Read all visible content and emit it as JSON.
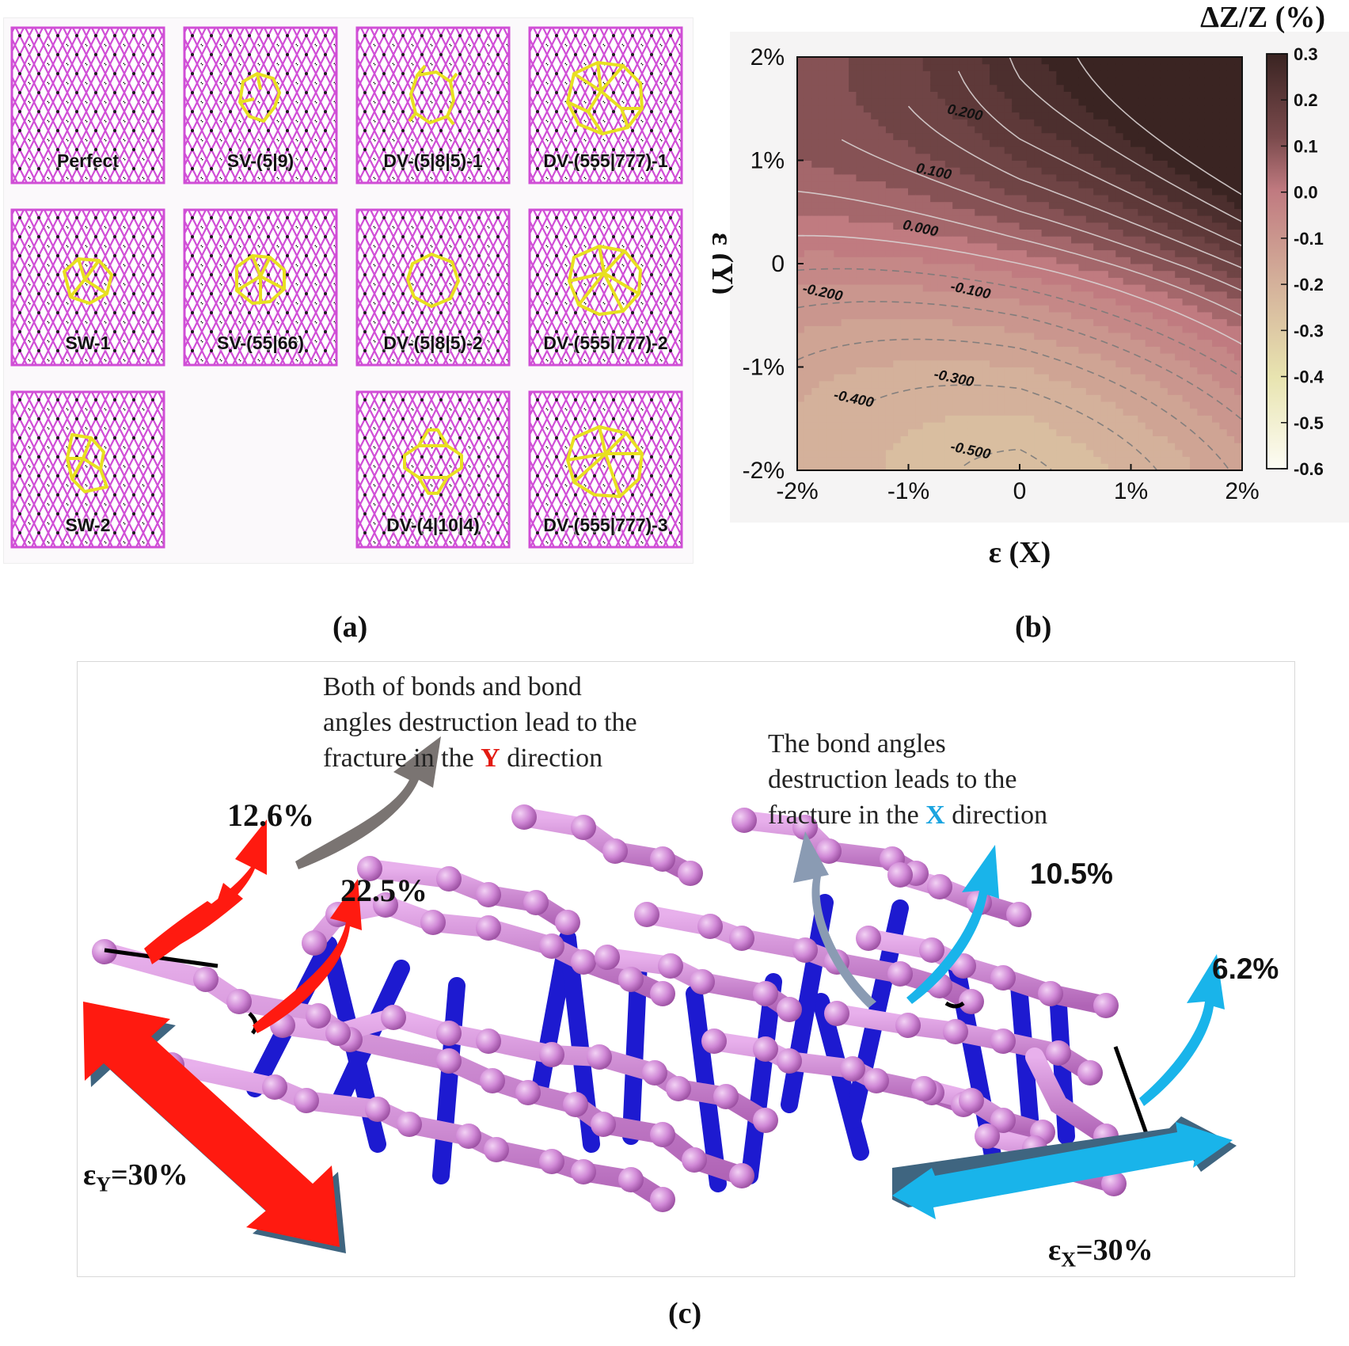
{
  "panel_a": {
    "label": "(a)",
    "tiles": [
      {
        "label": "Perfect"
      },
      {
        "label": "SV-(5|9)"
      },
      {
        "label": "DV-(5|8|5)-1"
      },
      {
        "label": "DV-(555|777)-1"
      },
      {
        "label": "SW-1"
      },
      {
        "label": "SV-(55|66)"
      },
      {
        "label": "DV-(5|8|5)-2"
      },
      {
        "label": "DV-(555|777)-2"
      },
      {
        "label": "SW-2"
      },
      {
        "label": "DV-(4|10|4)"
      },
      {
        "label": "DV-(555|777)-3"
      }
    ],
    "colors": {
      "lattice": "#d04ed6",
      "defect": "#e8e020",
      "atom": "#1a1a1a"
    }
  },
  "panel_b": {
    "label": "(b)",
    "chart_data": {
      "type": "heatmap",
      "title": "ΔZ/Z (%)",
      "xlabel": "ε (X)",
      "ylabel": "ε (Y)",
      "x_ticks": [
        "-2%",
        "-1%",
        "0",
        "1%",
        "2%"
      ],
      "y_ticks": [
        "2%",
        "1%",
        "0",
        "-1%",
        "-2%"
      ],
      "xlim": [
        -2,
        2
      ],
      "ylim": [
        -2,
        2
      ],
      "colorbar": {
        "range": [
          -0.6,
          0.3
        ],
        "ticks": [
          "0.3",
          "0.2",
          "0.1",
          "0.0",
          "-0.1",
          "-0.2",
          "-0.3",
          "-0.4",
          "-0.5",
          "-0.6"
        ]
      },
      "contour_labels": [
        {
          "text": "0.200",
          "value": 0.2,
          "x": -0.5,
          "y": 1.42
        },
        {
          "text": "0.100",
          "value": 0.1,
          "x": -0.78,
          "y": 0.85
        },
        {
          "text": "0.000",
          "value": 0.0,
          "x": -0.9,
          "y": 0.3
        },
        {
          "text": "-0.100",
          "value": -0.1,
          "x": -0.45,
          "y": -0.3
        },
        {
          "text": "-0.200",
          "value": -0.2,
          "x": -1.78,
          "y": -0.32
        },
        {
          "text": "-0.300",
          "value": -0.3,
          "x": -0.6,
          "y": -1.15
        },
        {
          "text": "-0.400",
          "value": -0.4,
          "x": -1.5,
          "y": -1.35
        },
        {
          "text": "-0.500",
          "value": -0.5,
          "x": -0.45,
          "y": -1.85
        }
      ],
      "grid": false
    }
  },
  "panel_c": {
    "label": "(c)",
    "note_y": {
      "line1": "Both of bonds and bond",
      "line2": "angles destruction lead to the",
      "line3_pre": "fracture in the ",
      "line3_hl": "Y",
      "line3_post": " direction"
    },
    "note_x": {
      "line1": "The bond angles",
      "line2": "destruction leads to the",
      "line3_pre": "fracture in the ",
      "line3_hl": "X",
      "line3_post": " direction"
    },
    "pct_126": "12.6%",
    "pct_225": "22.5%",
    "pct_105": "10.5%",
    "pct_62": "6.2%",
    "strain_y": {
      "eps": "ε",
      "sub": "Y",
      "val": "=30%"
    },
    "strain_x": {
      "eps": "ε",
      "sub": "X",
      "val": "=30%"
    },
    "colors": {
      "atom": "#d088d6",
      "bond_blue": "#1d1ad0",
      "arrow_red": "#ff1a10",
      "arrow_cyan": "#19b4ea",
      "arrow_gray": "#7a7472",
      "arrow_slate": "#8a9bb3",
      "y_hl": "#e31b13",
      "x_hl": "#1aa4e0"
    }
  }
}
